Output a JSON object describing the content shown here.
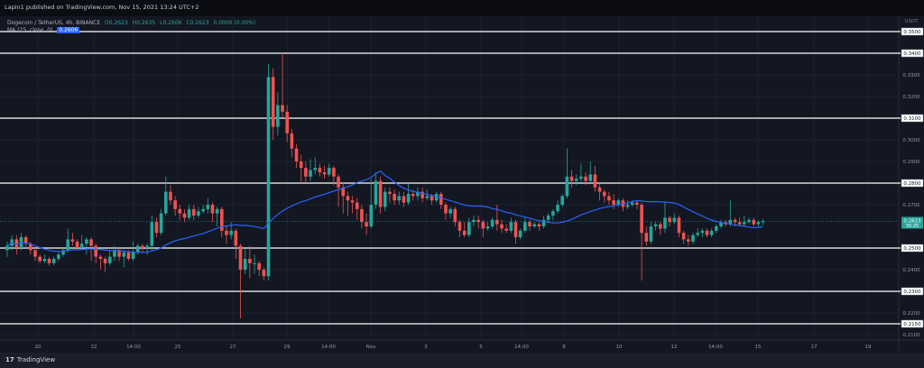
{
  "publisher_line": "Lapin1 published on TradingView.com, Nov 15, 2021 13:24 UTC+2",
  "legend": {
    "symbol": "Dogecoin / TetherUS, 4h, BINANCE",
    "open": "O0.2623",
    "high": "H0.2635",
    "low": "L0.2606",
    "close": "C0.2623",
    "change": "0.0000 (0.00%)",
    "ma_label": "MA (25, close, 0)",
    "ma_value": "0.2606"
  },
  "footer_logo": "TradingView",
  "colors": {
    "background": "#131722",
    "up": "#26a69a",
    "down": "#ef5350",
    "ma": "#2962ff",
    "level_lines": "#ffffff"
  },
  "chart_data": {
    "type": "candlestick",
    "interval": "4h",
    "currency": "USDT",
    "ylim": [
      0.205,
      0.355
    ],
    "grid": true,
    "y_ticks": [
      "0.3500",
      "0.3400",
      "0.3300",
      "0.3200",
      "0.3100",
      "0.3000",
      "0.2900",
      "0.2800",
      "0.2700",
      "0.2500",
      "0.2400",
      "0.2300",
      "0.2200",
      "0.2150",
      "0.2100"
    ],
    "x_ticks": [
      "20",
      "22",
      "14:00",
      "25",
      "27",
      "29",
      "14:00",
      "Nov",
      "3",
      "5",
      "14:00",
      "8",
      "10",
      "12",
      "14:00",
      "15",
      "17",
      "19"
    ],
    "horizontal_levels": [
      0.35,
      0.34,
      0.31,
      0.28,
      0.25,
      0.23,
      0.215
    ],
    "last_price": "0.2623",
    "countdown": "35:25",
    "indicator": {
      "type": "MA",
      "period": 25,
      "source": "close"
    },
    "candles": [
      [
        0.249,
        0.253,
        0.246,
        0.251
      ],
      [
        0.251,
        0.256,
        0.249,
        0.254
      ],
      [
        0.254,
        0.256,
        0.247,
        0.25
      ],
      [
        0.25,
        0.257,
        0.249,
        0.255
      ],
      [
        0.255,
        0.256,
        0.25,
        0.252
      ],
      [
        0.252,
        0.253,
        0.247,
        0.249
      ],
      [
        0.249,
        0.25,
        0.244,
        0.246
      ],
      [
        0.246,
        0.247,
        0.243,
        0.244
      ],
      [
        0.244,
        0.247,
        0.243,
        0.245
      ],
      [
        0.245,
        0.246,
        0.242,
        0.243
      ],
      [
        0.243,
        0.246,
        0.242,
        0.245
      ],
      [
        0.245,
        0.248,
        0.244,
        0.247
      ],
      [
        0.247,
        0.25,
        0.246,
        0.249
      ],
      [
        0.249,
        0.259,
        0.248,
        0.254
      ],
      [
        0.254,
        0.257,
        0.251,
        0.253
      ],
      [
        0.253,
        0.254,
        0.249,
        0.25
      ],
      [
        0.25,
        0.256,
        0.249,
        0.252
      ],
      [
        0.252,
        0.255,
        0.247,
        0.254
      ],
      [
        0.254,
        0.255,
        0.244,
        0.251
      ],
      [
        0.251,
        0.252,
        0.243,
        0.246
      ],
      [
        0.246,
        0.247,
        0.24,
        0.245
      ],
      [
        0.245,
        0.246,
        0.239,
        0.243
      ],
      [
        0.243,
        0.249,
        0.242,
        0.246
      ],
      [
        0.246,
        0.251,
        0.244,
        0.249
      ],
      [
        0.249,
        0.25,
        0.244,
        0.246
      ],
      [
        0.246,
        0.249,
        0.241,
        0.248
      ],
      [
        0.248,
        0.249,
        0.244,
        0.245
      ],
      [
        0.245,
        0.253,
        0.244,
        0.248
      ],
      [
        0.248,
        0.252,
        0.247,
        0.251
      ],
      [
        0.251,
        0.252,
        0.248,
        0.25
      ],
      [
        0.25,
        0.252,
        0.247,
        0.251
      ],
      [
        0.251,
        0.265,
        0.249,
        0.262
      ],
      [
        0.262,
        0.264,
        0.255,
        0.257
      ],
      [
        0.257,
        0.268,
        0.256,
        0.266
      ],
      [
        0.266,
        0.283,
        0.265,
        0.276
      ],
      [
        0.276,
        0.279,
        0.27,
        0.272
      ],
      [
        0.272,
        0.274,
        0.265,
        0.268
      ],
      [
        0.268,
        0.27,
        0.263,
        0.266
      ],
      [
        0.266,
        0.268,
        0.262,
        0.264
      ],
      [
        0.264,
        0.27,
        0.263,
        0.268
      ],
      [
        0.268,
        0.27,
        0.263,
        0.265
      ],
      [
        0.265,
        0.269,
        0.264,
        0.267
      ],
      [
        0.267,
        0.27,
        0.266,
        0.268
      ],
      [
        0.268,
        0.273,
        0.266,
        0.27
      ],
      [
        0.27,
        0.271,
        0.262,
        0.266
      ],
      [
        0.266,
        0.269,
        0.26,
        0.268
      ],
      [
        0.268,
        0.269,
        0.255,
        0.258
      ],
      [
        0.258,
        0.26,
        0.252,
        0.256
      ],
      [
        0.256,
        0.262,
        0.254,
        0.258
      ],
      [
        0.258,
        0.259,
        0.245,
        0.251
      ],
      [
        0.251,
        0.252,
        0.2175,
        0.24
      ],
      [
        0.24,
        0.25,
        0.238,
        0.245
      ],
      [
        0.245,
        0.251,
        0.236,
        0.243
      ],
      [
        0.243,
        0.247,
        0.238,
        0.243
      ],
      [
        0.243,
        0.244,
        0.237,
        0.24
      ],
      [
        0.24,
        0.241,
        0.235,
        0.237
      ],
      [
        0.237,
        0.335,
        0.235,
        0.329
      ],
      [
        0.329,
        0.333,
        0.3,
        0.306
      ],
      [
        0.306,
        0.322,
        0.302,
        0.316
      ],
      [
        0.316,
        0.34,
        0.31,
        0.313
      ],
      [
        0.313,
        0.316,
        0.299,
        0.303
      ],
      [
        0.303,
        0.305,
        0.292,
        0.296
      ],
      [
        0.296,
        0.298,
        0.287,
        0.29
      ],
      [
        0.29,
        0.293,
        0.28,
        0.287
      ],
      [
        0.287,
        0.29,
        0.28,
        0.283
      ],
      [
        0.283,
        0.291,
        0.281,
        0.286
      ],
      [
        0.286,
        0.292,
        0.284,
        0.287
      ],
      [
        0.287,
        0.289,
        0.283,
        0.285
      ],
      [
        0.285,
        0.288,
        0.282,
        0.284
      ],
      [
        0.284,
        0.289,
        0.283,
        0.287
      ],
      [
        0.287,
        0.288,
        0.279,
        0.283
      ],
      [
        0.283,
        0.284,
        0.269,
        0.278
      ],
      [
        0.278,
        0.28,
        0.266,
        0.274
      ],
      [
        0.274,
        0.276,
        0.265,
        0.272
      ],
      [
        0.272,
        0.274,
        0.266,
        0.271
      ],
      [
        0.271,
        0.273,
        0.263,
        0.268
      ],
      [
        0.268,
        0.27,
        0.259,
        0.262
      ],
      [
        0.262,
        0.266,
        0.256,
        0.26
      ],
      [
        0.26,
        0.282,
        0.259,
        0.27
      ],
      [
        0.27,
        0.285,
        0.268,
        0.281
      ],
      [
        0.281,
        0.283,
        0.266,
        0.269
      ],
      [
        0.269,
        0.278,
        0.267,
        0.276
      ],
      [
        0.276,
        0.278,
        0.271,
        0.275
      ],
      [
        0.275,
        0.277,
        0.27,
        0.272
      ],
      [
        0.272,
        0.276,
        0.27,
        0.274
      ],
      [
        0.274,
        0.276,
        0.269,
        0.271
      ],
      [
        0.271,
        0.28,
        0.27,
        0.275
      ],
      [
        0.275,
        0.277,
        0.272,
        0.274
      ],
      [
        0.274,
        0.278,
        0.272,
        0.276
      ],
      [
        0.276,
        0.278,
        0.271,
        0.273
      ],
      [
        0.273,
        0.277,
        0.272,
        0.274
      ],
      [
        0.274,
        0.275,
        0.27,
        0.272
      ],
      [
        0.272,
        0.276,
        0.271,
        0.275
      ],
      [
        0.275,
        0.276,
        0.268,
        0.27
      ],
      [
        0.27,
        0.271,
        0.263,
        0.266
      ],
      [
        0.266,
        0.269,
        0.264,
        0.268
      ],
      [
        0.268,
        0.269,
        0.26,
        0.262
      ],
      [
        0.262,
        0.263,
        0.255,
        0.258
      ],
      [
        0.258,
        0.262,
        0.255,
        0.256
      ],
      [
        0.256,
        0.264,
        0.255,
        0.262
      ],
      [
        0.262,
        0.265,
        0.26,
        0.263
      ],
      [
        0.263,
        0.265,
        0.259,
        0.262
      ],
      [
        0.262,
        0.263,
        0.255,
        0.259
      ],
      [
        0.259,
        0.262,
        0.258,
        0.26
      ],
      [
        0.26,
        0.264,
        0.259,
        0.263
      ],
      [
        0.263,
        0.27,
        0.258,
        0.261
      ],
      [
        0.261,
        0.263,
        0.257,
        0.259
      ],
      [
        0.259,
        0.261,
        0.257,
        0.258
      ],
      [
        0.258,
        0.264,
        0.257,
        0.262
      ],
      [
        0.262,
        0.263,
        0.252,
        0.255
      ],
      [
        0.255,
        0.259,
        0.254,
        0.258
      ],
      [
        0.258,
        0.264,
        0.257,
        0.262
      ],
      [
        0.262,
        0.263,
        0.258,
        0.26
      ],
      [
        0.26,
        0.262,
        0.259,
        0.261
      ],
      [
        0.261,
        0.262,
        0.258,
        0.26
      ],
      [
        0.26,
        0.265,
        0.259,
        0.263
      ],
      [
        0.263,
        0.266,
        0.262,
        0.265
      ],
      [
        0.265,
        0.268,
        0.263,
        0.267
      ],
      [
        0.267,
        0.272,
        0.266,
        0.27
      ],
      [
        0.27,
        0.275,
        0.269,
        0.274
      ],
      [
        0.274,
        0.296,
        0.273,
        0.283
      ],
      [
        0.283,
        0.286,
        0.278,
        0.281
      ],
      [
        0.281,
        0.284,
        0.279,
        0.282
      ],
      [
        0.282,
        0.289,
        0.28,
        0.283
      ],
      [
        0.283,
        0.285,
        0.279,
        0.281
      ],
      [
        0.281,
        0.29,
        0.28,
        0.284
      ],
      [
        0.284,
        0.288,
        0.276,
        0.278
      ],
      [
        0.278,
        0.28,
        0.272,
        0.276
      ],
      [
        0.276,
        0.277,
        0.271,
        0.274
      ],
      [
        0.274,
        0.276,
        0.27,
        0.272
      ],
      [
        0.272,
        0.275,
        0.268,
        0.27
      ],
      [
        0.27,
        0.273,
        0.269,
        0.272
      ],
      [
        0.272,
        0.273,
        0.267,
        0.269
      ],
      [
        0.269,
        0.272,
        0.268,
        0.27
      ],
      [
        0.27,
        0.272,
        0.269,
        0.271
      ],
      [
        0.271,
        0.272,
        0.268,
        0.27
      ],
      [
        0.27,
        0.271,
        0.235,
        0.257
      ],
      [
        0.257,
        0.26,
        0.251,
        0.253
      ],
      [
        0.253,
        0.262,
        0.252,
        0.26
      ],
      [
        0.26,
        0.262,
        0.258,
        0.261
      ],
      [
        0.261,
        0.262,
        0.256,
        0.259
      ],
      [
        0.259,
        0.271,
        0.257,
        0.264
      ],
      [
        0.264,
        0.265,
        0.26,
        0.262
      ],
      [
        0.262,
        0.266,
        0.261,
        0.264
      ],
      [
        0.264,
        0.265,
        0.255,
        0.257
      ],
      [
        0.257,
        0.258,
        0.252,
        0.254
      ],
      [
        0.254,
        0.256,
        0.251,
        0.253
      ],
      [
        0.253,
        0.257,
        0.252,
        0.256
      ],
      [
        0.256,
        0.259,
        0.255,
        0.257
      ],
      [
        0.257,
        0.259,
        0.255,
        0.258
      ],
      [
        0.258,
        0.259,
        0.255,
        0.256
      ],
      [
        0.256,
        0.259,
        0.255,
        0.258
      ],
      [
        0.258,
        0.261,
        0.257,
        0.26
      ],
      [
        0.26,
        0.263,
        0.259,
        0.262
      ],
      [
        0.262,
        0.263,
        0.26,
        0.261
      ],
      [
        0.261,
        0.272,
        0.26,
        0.263
      ],
      [
        0.263,
        0.264,
        0.26,
        0.262
      ],
      [
        0.262,
        0.264,
        0.26,
        0.261
      ],
      [
        0.261,
        0.265,
        0.26,
        0.262
      ],
      [
        0.262,
        0.264,
        0.261,
        0.263
      ],
      [
        0.263,
        0.264,
        0.26,
        0.261
      ],
      [
        0.261,
        0.263,
        0.26,
        0.262
      ],
      [
        0.262,
        0.2635,
        0.2606,
        0.2623
      ]
    ]
  }
}
